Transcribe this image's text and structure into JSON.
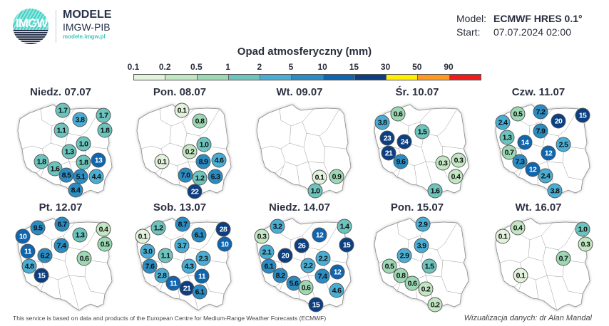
{
  "logo": {
    "text": "IMGW",
    "brand": "MODELE",
    "subbrand": "IMGW-PIB",
    "url": "modele.imgw.pl"
  },
  "model": {
    "label": "Model:",
    "value": "ECMWF HRES 0.1°",
    "start_label": "Start:",
    "start_value": "07.07.2024 02:00"
  },
  "legend": {
    "title": "Opad atmosferyczny (mm)",
    "ticks": [
      "0.1",
      "0.2",
      "0.5",
      "1",
      "2",
      "5",
      "10",
      "15",
      "30",
      "50",
      "90"
    ],
    "colors": [
      "#e3f2dc",
      "#c3e6c3",
      "#9dd8b4",
      "#6cc4bd",
      "#4aaed4",
      "#2a8cc2",
      "#0f66af",
      "#0b3f82",
      "#ffee00",
      "#ff9a1f",
      "#ee1c1c"
    ]
  },
  "maps": [
    {
      "title": "Niedz. 07.07",
      "values": [
        "1.7",
        "3.8",
        "1.7",
        "1.8",
        "1.1",
        "1.0",
        "1.3",
        "1.8",
        "13",
        "1.8",
        "1.6",
        "8.5",
        "5.1",
        "4.4",
        "8.4"
      ]
    },
    {
      "title": "Pon. 08.07",
      "values": [
        "0.1",
        "0.8",
        "1.0",
        "0.2",
        "0.1",
        "8.9",
        "4.6",
        "7.0",
        "1.2",
        "6.3",
        "22"
      ]
    },
    {
      "title": "Wt. 09.07",
      "values": [
        "0.1",
        "0.9",
        "1.0"
      ]
    },
    {
      "title": "Śr. 10.07",
      "values": [
        "0.6",
        "3.8",
        "1.5",
        "23",
        "24",
        "21",
        "9.6",
        "0.3",
        "0.3",
        "0.4",
        "1.6"
      ]
    },
    {
      "title": "Czw. 11.07",
      "values": [
        "0.5",
        "7.2",
        "15",
        "20",
        "2.4",
        "7.9",
        "1.3",
        "14",
        "2.5",
        "12",
        "0.7",
        "7.3",
        "12",
        "2.4",
        "3.8"
      ]
    },
    {
      "title": "Pt. 12.07",
      "values": [
        "9.5",
        "6.7",
        "0.4",
        "10",
        "1.3",
        "0.5",
        "7.4",
        "11",
        "6.2",
        "0.6",
        "4.8",
        "15"
      ]
    },
    {
      "title": "Sob. 13.07",
      "values": [
        "1.2",
        "8.7",
        "28",
        "0.1",
        "6.1",
        "10",
        "3.7",
        "3.0",
        "1.1",
        "2.3",
        "4.3",
        "7.6",
        "2.8",
        "11",
        "11",
        "21",
        "6.1"
      ]
    },
    {
      "title": "Niedz. 14.07",
      "values": [
        "3.2",
        "1.4",
        "0.3",
        "12",
        "15",
        "26",
        "2.1",
        "20",
        "2.2",
        "2.2",
        "6.1",
        "12",
        "7.4",
        "8.2",
        "5.6",
        "0.6",
        "4.6",
        "15"
      ]
    },
    {
      "title": "Pon. 15.07",
      "values": [
        "2.9",
        "3.9",
        "2.9",
        "1.5",
        "0.5",
        "0.8",
        "0.6",
        "0.2",
        "0.2"
      ]
    },
    {
      "title": "Wt. 16.07",
      "values": [
        "0.4",
        "1.0",
        "0.1",
        "0.3",
        "0.7",
        "0.1"
      ]
    }
  ],
  "footer": "This service is based on data and products of the European Centre for Medium-Range Weather Forecasts (ECMWF)",
  "credit": "Wizualizacja danych: dr Alan Mandal"
}
